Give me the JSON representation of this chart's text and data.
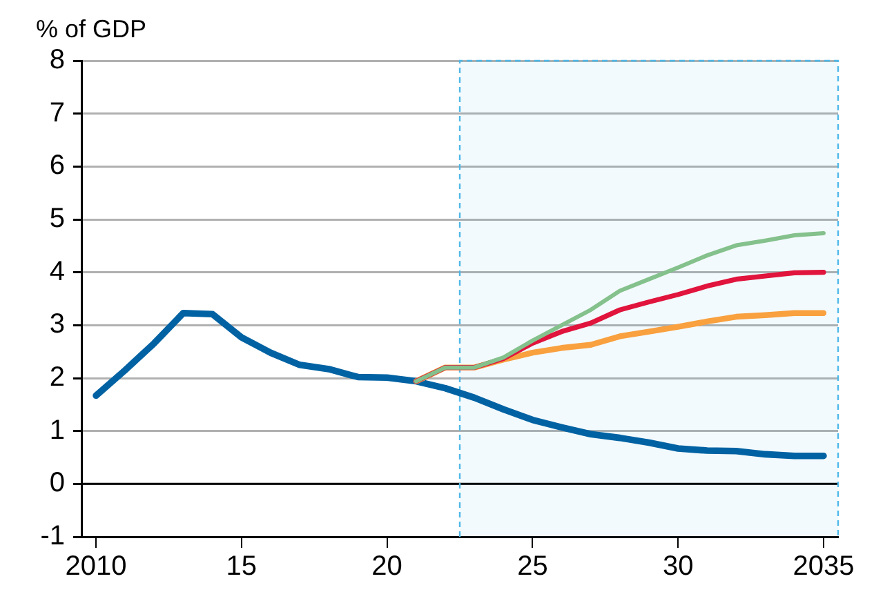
{
  "chart_data": {
    "type": "line",
    "ylabel": "% of GDP",
    "xlim": [
      2009.5,
      2035.5
    ],
    "xticks": [
      2010,
      {
        "value": 2015,
        "label": "15"
      },
      {
        "value": 2020,
        "label": "20"
      },
      {
        "value": 2025,
        "label": "25"
      },
      {
        "value": 2030,
        "label": "30"
      },
      2035
    ],
    "ylim": [
      -1,
      8
    ],
    "yticks": [
      -1,
      0,
      1,
      2,
      3,
      4,
      5,
      6,
      7,
      8
    ],
    "grid": "y",
    "legend": false,
    "marker": "none",
    "line_style": "solid",
    "ref_lines": [
      {
        "axis": "y",
        "value": 0,
        "color": "#000000"
      }
    ],
    "bands": [
      {
        "axis": "x",
        "from": 2022.5,
        "to": 2035.5,
        "color": "#4fb8e8"
      }
    ],
    "series": [
      {
        "color": "#0062a3",
        "x": [
          2010,
          2011,
          2012,
          2013,
          2014,
          2015,
          2016,
          2017,
          2018,
          2019,
          2020,
          2021,
          2022,
          2023,
          2024,
          2025,
          2026,
          2027,
          2028,
          2029,
          2030,
          2031,
          2032,
          2033,
          2034,
          2035
        ],
        "values": [
          1.67,
          2.15,
          2.66,
          3.23,
          3.21,
          2.77,
          2.48,
          2.25,
          2.17,
          2.02,
          2.01,
          1.94,
          1.81,
          1.63,
          1.41,
          1.21,
          1.07,
          0.94,
          0.87,
          0.78,
          0.67,
          0.63,
          0.62,
          0.56,
          0.53,
          0.53
        ]
      },
      {
        "color": "#f9a03f",
        "x": [
          2021,
          2022,
          2023,
          2024,
          2025,
          2026,
          2027,
          2028,
          2029,
          2030,
          2031,
          2032,
          2033,
          2034,
          2035
        ],
        "values": [
          1.94,
          2.2,
          2.2,
          2.35,
          2.48,
          2.57,
          2.63,
          2.79,
          2.88,
          2.97,
          3.07,
          3.16,
          3.19,
          3.23,
          3.23
        ]
      },
      {
        "color": "#e0143c",
        "x": [
          2021,
          2022,
          2023,
          2024,
          2025,
          2026,
          2027,
          2028,
          2029,
          2030,
          2031,
          2032,
          2033,
          2034,
          2035
        ],
        "values": [
          1.94,
          2.2,
          2.2,
          2.37,
          2.66,
          2.88,
          3.04,
          3.29,
          3.44,
          3.58,
          3.74,
          3.87,
          3.93,
          3.99,
          4.0
        ]
      },
      {
        "color": "#84c18c",
        "x": [
          2021,
          2022,
          2023,
          2024,
          2025,
          2026,
          2027,
          2028,
          2029,
          2030,
          2031,
          2032,
          2033,
          2034,
          2035
        ],
        "values": [
          1.94,
          2.2,
          2.2,
          2.39,
          2.71,
          3.0,
          3.29,
          3.65,
          3.87,
          4.09,
          4.32,
          4.51,
          4.6,
          4.7,
          4.74
        ]
      }
    ]
  }
}
